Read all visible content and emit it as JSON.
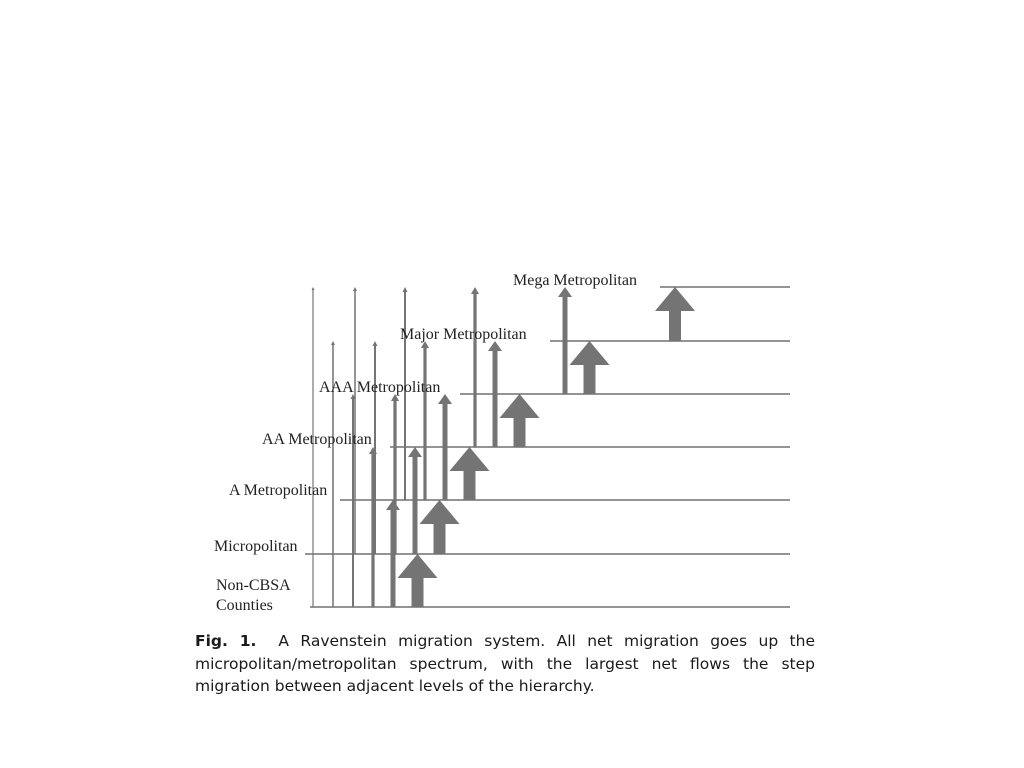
{
  "figure": {
    "levels": [
      "Non-CBSA Counties",
      "Micropolitan",
      "A Metropolitan",
      "AA Metropolitan",
      "AAA Metropolitan",
      "Major Metropolitan",
      "Mega Metropolitan"
    ],
    "label_lines": {
      "non_cbsa": [
        "Non-CBSA",
        "Counties"
      ]
    },
    "arrow_color": "#747474",
    "line_color": "#555555",
    "label_color": "#222222"
  },
  "caption": {
    "number": "Fig. 1.",
    "text": "A Ravenstein migration system. All net migration goes up the micropolitan/metropolitan spectrum, with the largest net flows the step migration between adjacent levels of the hierarchy."
  }
}
